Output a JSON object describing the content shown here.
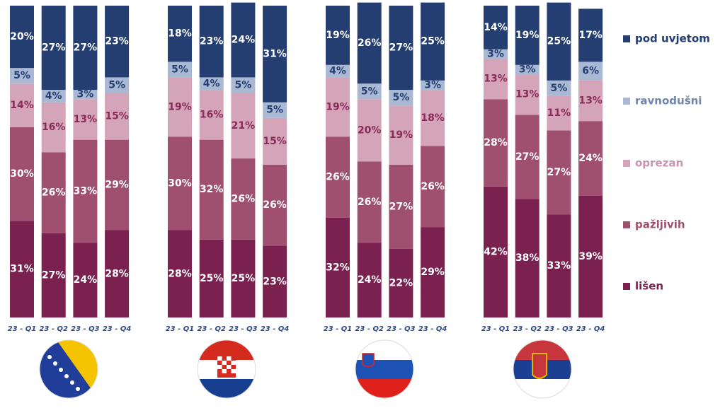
{
  "chart_data": {
    "type": "stacked_bar",
    "categories": [
      "23 - Q1",
      "23 - Q2",
      "23 - Q3",
      "23 - Q4",
      "23 - Q1",
      "23 - Q2",
      "23 - Q3",
      "23 - Q4",
      "23 - Q1",
      "23 - Q2",
      "23 - Q3",
      "23 - Q4",
      "23 - Q1",
      "23 - Q2",
      "23 - Q3",
      "23 - Q4"
    ],
    "ylim": [
      0,
      100
    ],
    "series": [
      {
        "name": "lišen",
        "color": "#7b2150",
        "values": [
          31,
          27,
          24,
          28,
          28,
          25,
          25,
          23,
          32,
          24,
          22,
          29,
          42,
          38,
          33,
          39
        ],
        "value_labels": [
          "31%",
          "27%",
          "24%",
          "28%",
          "28%",
          "25%",
          "25%",
          "23%",
          "32%",
          "24%",
          "22%",
          "29%",
          "42%",
          "38%",
          "33%",
          "39%"
        ]
      },
      {
        "name": "pažljivih",
        "color": "#a0506f",
        "values": [
          30,
          26,
          33,
          29,
          30,
          32,
          26,
          26,
          26,
          26,
          27,
          26,
          28,
          27,
          27,
          24
        ],
        "value_labels": [
          "30%",
          "26%",
          "33%",
          "29%",
          "30%",
          "32%",
          "26%",
          "26%",
          "26%",
          "26%",
          "27%",
          "26%",
          "28%",
          "27%",
          "27%",
          "24%"
        ]
      },
      {
        "name": "oprezan",
        "color": "#d4a5b8",
        "values": [
          14,
          16,
          13,
          15,
          19,
          16,
          21,
          15,
          19,
          20,
          19,
          18,
          13,
          13,
          11,
          13
        ],
        "value_labels": [
          "14%",
          "16%",
          "13%",
          "15%",
          "19%",
          "16%",
          "21%",
          "15%",
          "19%",
          "20%",
          "19%",
          "18%",
          "13%",
          "13%",
          "11%",
          "13%"
        ]
      },
      {
        "name": "ravnodušni",
        "color": "#a9b8d3",
        "values": [
          5,
          4,
          3,
          5,
          5,
          4,
          5,
          5,
          4,
          5,
          5,
          3,
          3,
          3,
          5,
          6
        ],
        "value_labels": [
          "5%",
          "4%",
          "3%",
          "5%",
          "5%",
          "4%",
          "5%",
          "5%",
          "4%",
          "5%",
          "5%",
          "3%",
          "3%",
          "3%",
          "5%",
          "6%"
        ]
      },
      {
        "name": "pod uvjetom",
        "color": "#243e72",
        "values": [
          20,
          27,
          27,
          23,
          18,
          23,
          24,
          31,
          19,
          26,
          27,
          25,
          14,
          19,
          25,
          17
        ],
        "value_labels": [
          "20%",
          "27%",
          "27%",
          "23%",
          "18%",
          "23%",
          "24%",
          "31%",
          "19%",
          "26%",
          "27%",
          "25%",
          "14%",
          "19%",
          "25%",
          "17%"
        ]
      }
    ]
  }
}
